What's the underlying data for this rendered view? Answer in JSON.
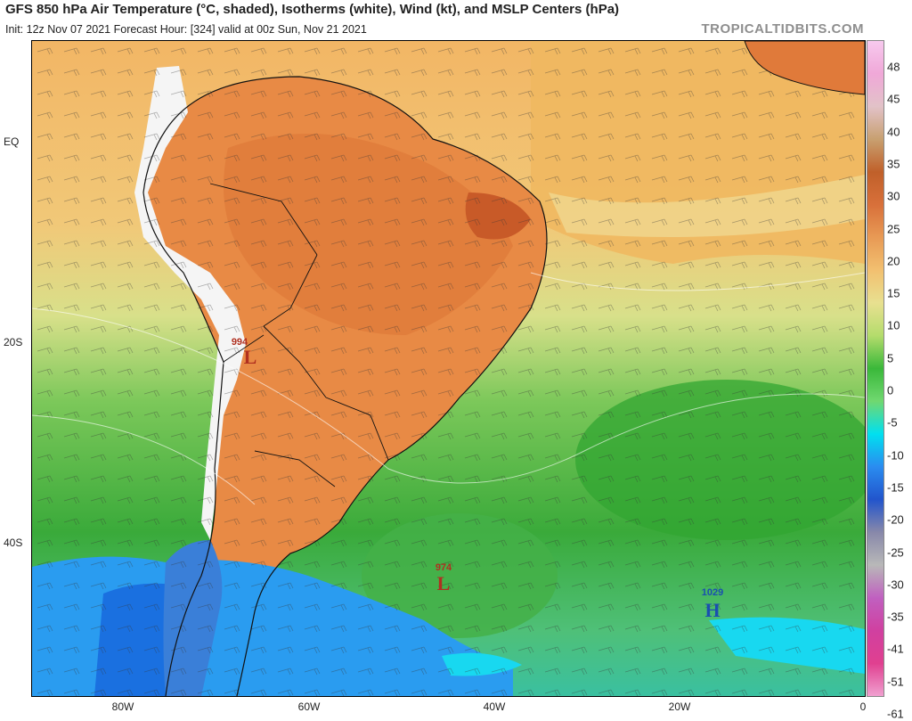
{
  "header": {
    "title": "GFS 850 hPa Air Temperature (°C, shaded), Isotherms (white), Wind (kt), and MSLP Centers (hPa)",
    "subtitle": "Init: 12z Nov 07 2021    Forecast Hour: [324]    valid at 00z Sun, Nov 21 2021",
    "brand": "TROPICALTIDBITS.COM"
  },
  "axes": {
    "lat_labels": [
      "EQ",
      "20S",
      "40S"
    ],
    "lon_labels": [
      "80W",
      "60W",
      "40W",
      "20W",
      "0"
    ]
  },
  "colorbar": {
    "labels": [
      "48",
      "45",
      "40",
      "35",
      "30",
      "25",
      "20",
      "15",
      "10",
      "5",
      "0",
      "-5",
      "-10",
      "-15",
      "-20",
      "-25",
      "-30",
      "-35",
      "-41",
      "-51",
      "-61"
    ],
    "colors": [
      "#f7c9ee",
      "#f0a8d8",
      "#e2c2c8",
      "#c8a070",
      "#c0602a",
      "#d8703a",
      "#e89a55",
      "#f2c070",
      "#e8e090",
      "#b4dc6c",
      "#3ab83a",
      "#70d870",
      "#00e0f0",
      "#2a8cf0",
      "#2255cc",
      "#8888aa",
      "#b8b8b8",
      "#c060c0",
      "#d040a0",
      "#e04090",
      "#f0a0d0"
    ]
  },
  "pressure_centers": [
    {
      "value": "994",
      "letter": "L",
      "kind": "low",
      "color": "#b03020"
    },
    {
      "value": "974",
      "letter": "L",
      "kind": "low",
      "color": "#b03020"
    },
    {
      "value": "1029",
      "letter": "H",
      "kind": "high",
      "color": "#1a4fb0"
    }
  ]
}
